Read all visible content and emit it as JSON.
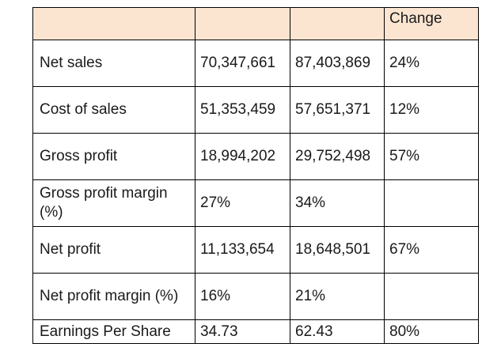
{
  "table": {
    "header": [
      "",
      "",
      "",
      "Change"
    ],
    "rows": [
      {
        "label": "Net sales",
        "v1": "70,347,661",
        "v2": "87,403,869",
        "change": "24%"
      },
      {
        "label": "Cost of sales",
        "v1": "51,353,459",
        "v2": "57,651,371",
        "change": "12%"
      },
      {
        "label": "Gross profit",
        "v1": "18,994,202",
        "v2": "29,752,498",
        "change": "57%"
      },
      {
        "label": "Gross profit margin (%)",
        "v1": "27%",
        "v2": "34%",
        "change": ""
      },
      {
        "label": "Net profit",
        "v1": "11,133,654",
        "v2": "18,648,501",
        "change": "67%"
      },
      {
        "label": "Net profit margin (%)",
        "v1": "16%",
        "v2": "21%",
        "change": ""
      },
      {
        "label": "Earnings Per Share",
        "v1": "34.73",
        "v2": "62.43",
        "change": "80%"
      }
    ]
  },
  "colors": {
    "header_fill": "#fbe5d0",
    "border": "#000000"
  }
}
